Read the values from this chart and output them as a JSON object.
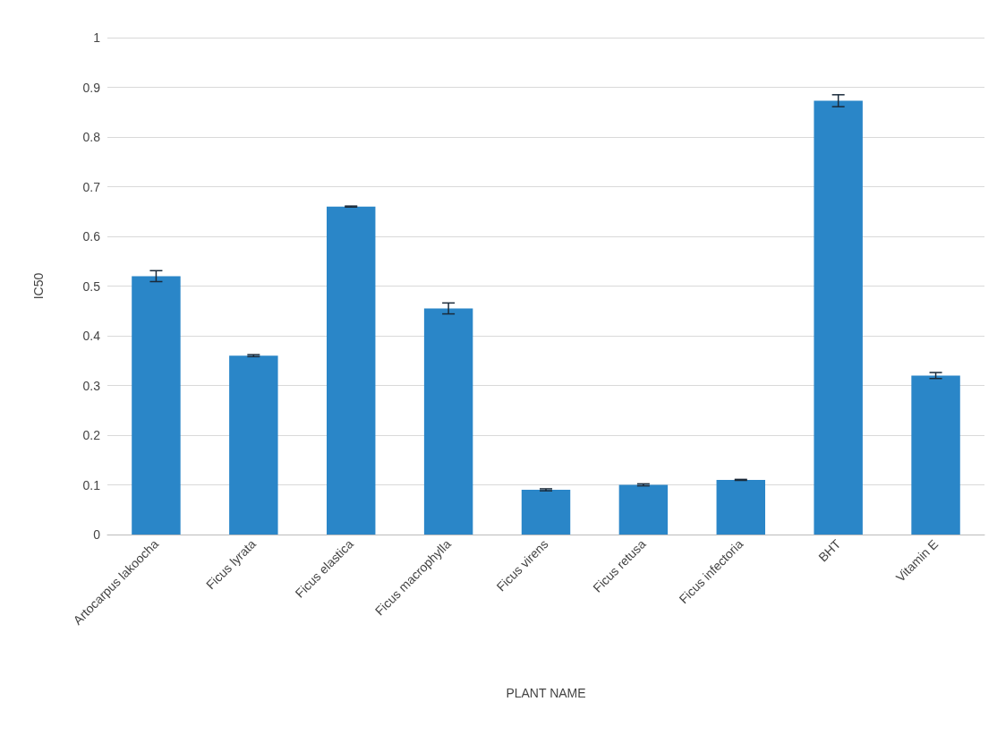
{
  "chart_data": {
    "type": "bar",
    "xlabel": "PLANT NAME",
    "ylabel": "IC50",
    "categories": [
      "Artocarpus lakoocha",
      "Ficus lyrata",
      "Ficus elastica",
      "Ficus macrophylla",
      "Ficus virens",
      "Ficus retusa",
      "Ficus infectoria",
      "BHT",
      "Vitamin E"
    ],
    "values": [
      0.52,
      0.36,
      0.66,
      0.455,
      0.09,
      0.1,
      0.11,
      0.873,
      0.32
    ],
    "errors": [
      0.011,
      0.002,
      0.001,
      0.011,
      0.002,
      0.002,
      0.001,
      0.012,
      0.006
    ],
    "color": "#2a86c8",
    "ylim": [
      0,
      1
    ],
    "yticks": [
      0,
      0.1,
      0.2,
      0.3,
      0.4,
      0.5,
      0.6,
      0.7,
      0.8,
      0.9,
      1
    ],
    "grid": "y"
  }
}
